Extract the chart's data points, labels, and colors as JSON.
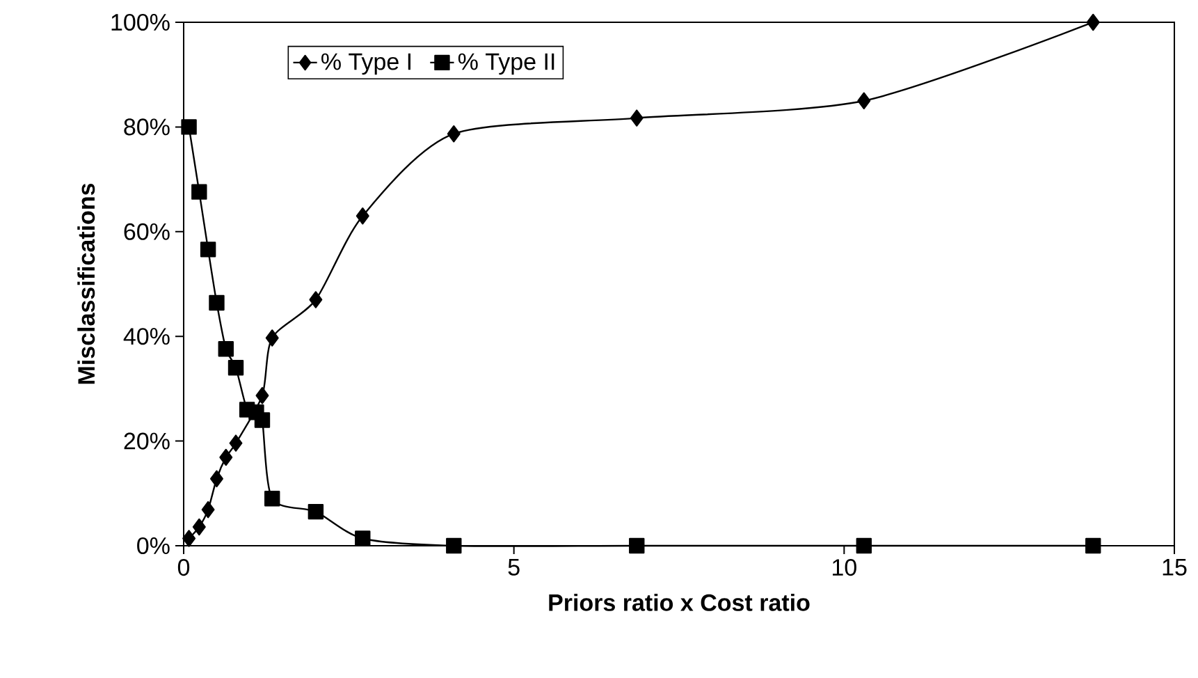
{
  "chart_data": {
    "type": "line",
    "xlabel": "Priors ratio x Cost ratio",
    "ylabel": "Misclassifications",
    "x": [
      0.08,
      0.235,
      0.37,
      0.5,
      0.64,
      0.79,
      0.96,
      1.1,
      1.19,
      1.34,
      2.0,
      2.71,
      4.09,
      6.86,
      10.3,
      13.77
    ],
    "series": [
      {
        "name": "% Type I",
        "color": "#000000",
        "marker": "diamond",
        "values": [
          1.4,
          3.6,
          6.9,
          12.8,
          16.9,
          19.6,
          null,
          null,
          28.7,
          39.7,
          47,
          63,
          78.7,
          81.7,
          85,
          100
        ]
      },
      {
        "name": "% Type II",
        "color": "#000000",
        "marker": "square",
        "values": [
          80,
          67.6,
          56.6,
          46.4,
          37.6,
          34,
          26,
          25.5,
          24,
          9,
          6.5,
          1.4,
          0,
          0,
          0,
          0
        ]
      }
    ],
    "xlim": [
      0,
      15
    ],
    "xticks": [
      0,
      5,
      10,
      15
    ],
    "ylim": [
      0,
      100
    ],
    "yticks": [
      {
        "value": 0,
        "label": "0%"
      },
      {
        "value": 20,
        "label": "20%"
      },
      {
        "value": 40,
        "label": "40%"
      },
      {
        "value": 60,
        "label": "60%"
      },
      {
        "value": 80,
        "label": "80%"
      },
      {
        "value": 100,
        "label": "100%"
      }
    ],
    "grid": false,
    "legend": "top left",
    "line_style": "solid"
  }
}
